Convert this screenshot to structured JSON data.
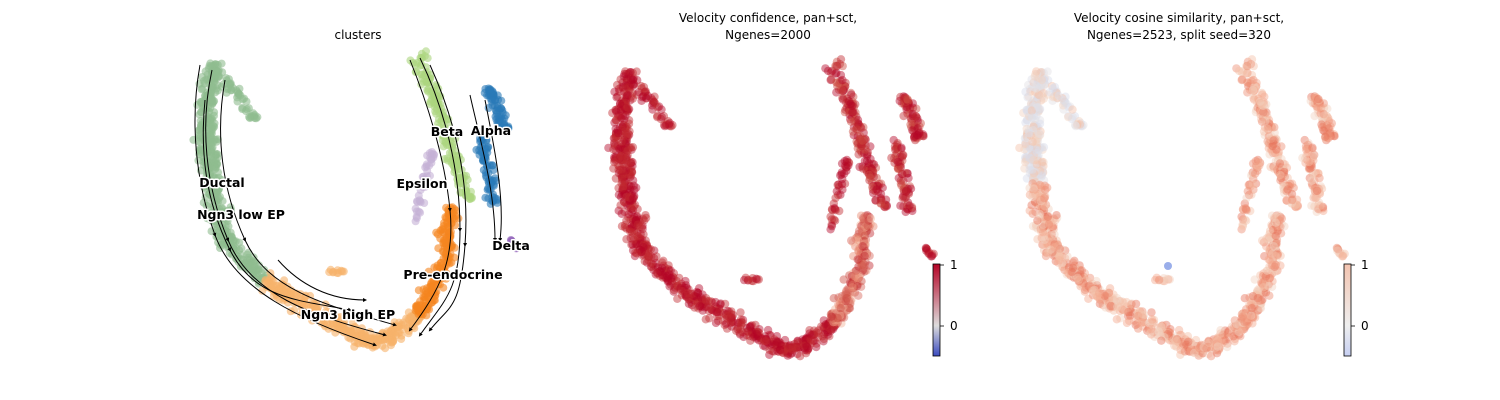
{
  "chart_data": [
    {
      "type": "scatter",
      "title": "clusters",
      "clusters": [
        {
          "name": "Ductal",
          "color": "#8fbc8f"
        },
        {
          "name": "Ngn3 low EP",
          "color": "#8fbc8f"
        },
        {
          "name": "Ngn3 high EP",
          "color": "#f6b26b"
        },
        {
          "name": "Pre-endocrine",
          "color": "#f5861f"
        },
        {
          "name": "Beta",
          "color": "#acd67e"
        },
        {
          "name": "Alpha",
          "color": "#2a7ab8"
        },
        {
          "name": "Delta",
          "color": "#9467bd"
        },
        {
          "name": "Epsilon",
          "color": "#c5b0d5"
        }
      ],
      "streamlines": true,
      "axes": "off"
    },
    {
      "type": "scatter",
      "title_line1": "Velocity confidence, pan+sct,",
      "title_line2": "Ngenes=2000",
      "colormap": "coolwarm",
      "colorbar": {
        "ticks": [
          "1",
          "0"
        ],
        "vmin": -0.5,
        "vmax": 1
      },
      "axes": "off"
    },
    {
      "type": "scatter",
      "title_line1": "Velocity cosine similarity, pan+sct,",
      "title_line2": "Ngenes=2523, split seed=320",
      "colormap": "coolwarm",
      "colorbar": {
        "ticks": [
          "1",
          "0"
        ],
        "vmin": -0.5,
        "vmax": 1
      },
      "axes": "off"
    }
  ]
}
